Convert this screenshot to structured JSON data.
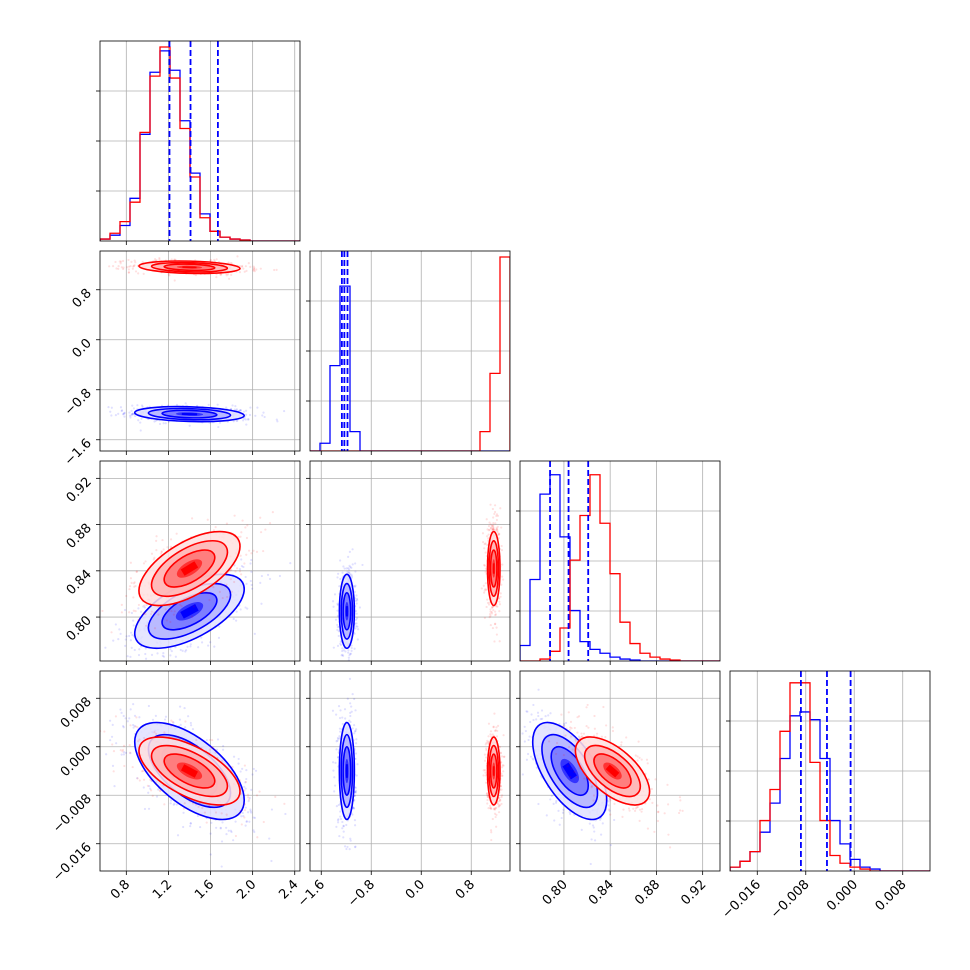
{
  "chart_data": {
    "type": "corner",
    "title": "",
    "parameters": [
      {
        "label": "",
        "range": [
          0.55,
          2.45
        ],
        "ticks": [
          "0.8",
          "1.2",
          "1.6",
          "2.0",
          "2.4"
        ],
        "tick_values": [
          0.8,
          1.2,
          1.6,
          2.0,
          2.4
        ]
      },
      {
        "label": "",
        "range": [
          -1.78,
          1.42
        ],
        "ticks": [
          "-1.6",
          "-0.8",
          "0.0",
          "0.8"
        ],
        "tick_values": [
          -1.6,
          -0.8,
          0.0,
          0.8
        ]
      },
      {
        "label": "",
        "range": [
          0.762,
          0.935
        ],
        "ticks": [
          "0.80",
          "0.84",
          "0.88",
          "0.92"
        ],
        "tick_values": [
          0.8,
          0.84,
          0.88,
          0.92
        ]
      },
      {
        "label": "",
        "range": [
          -0.0205,
          0.0125
        ],
        "ticks": [
          "-0.016",
          "-0.008",
          "0.000",
          "0.008"
        ],
        "tick_values": [
          -0.016,
          -0.008,
          0.0,
          0.008
        ]
      }
    ],
    "series": [
      {
        "name": "",
        "color": "#0000ff",
        "means": [
          1.4,
          -1.19,
          0.805,
          -0.004
        ],
        "sds": [
          0.26,
          0.06,
          0.016,
          0.004
        ],
        "correlations": {
          "0-1": -0.2,
          "0-2": 0.6,
          "0-3": -0.6,
          "1-2": 0.0,
          "1-3": 0.0,
          "2-3": -0.6
        }
      },
      {
        "name": "",
        "color": "#ff0000",
        "means": [
          1.4,
          1.16,
          0.842,
          -0.004
        ],
        "sds": [
          0.24,
          0.05,
          0.016,
          0.0028
        ],
        "correlations": {
          "0-1": -0.2,
          "0-2": 0.6,
          "0-3": -0.6,
          "1-2": 0.0,
          "1-3": 0.0,
          "2-3": -0.6
        }
      }
    ],
    "histograms": [
      {
        "param": 0,
        "bins": [
          0.55,
          2.45
        ],
        "nbins": 20,
        "series": [
          [
            0.01,
            0.03,
            0.08,
            0.22,
            0.55,
            0.87,
            0.98,
            0.88,
            0.62,
            0.35,
            0.14,
            0.05,
            0.02,
            0.01,
            0.005,
            0.0,
            0.0,
            0.0,
            0.0,
            0.0
          ],
          [
            0.01,
            0.04,
            0.1,
            0.2,
            0.56,
            0.85,
            1.0,
            0.84,
            0.58,
            0.33,
            0.12,
            0.05,
            0.02,
            0.01,
            0.005,
            0.0,
            0.0,
            0.0,
            0.0,
            0.0
          ]
        ]
      },
      {
        "param": 1,
        "bins": [
          -1.78,
          1.42
        ],
        "nbins": 20,
        "series": [
          [
            0.0,
            0.04,
            0.44,
            0.85,
            0.1,
            0.0,
            0.0,
            0.0,
            0.0,
            0.0,
            0.0,
            0.0,
            0.0,
            0.0,
            0.0,
            0.0,
            0.0,
            0.0,
            0.0,
            0.0
          ],
          [
            0.0,
            0.0,
            0.0,
            0.0,
            0.0,
            0.0,
            0.0,
            0.0,
            0.0,
            0.0,
            0.0,
            0.0,
            0.0,
            0.0,
            0.0,
            0.0,
            0.0,
            0.1,
            0.4,
            1.0
          ]
        ]
      },
      {
        "param": 2,
        "bins": [
          0.762,
          0.935
        ],
        "nbins": 20,
        "series": [
          [
            0.08,
            0.42,
            0.86,
            0.96,
            0.64,
            0.26,
            0.1,
            0.06,
            0.04,
            0.02,
            0.01,
            0.005,
            0.0,
            0.0,
            0.0,
            0.0,
            0.0,
            0.0,
            0.0,
            0.0
          ],
          [
            0.0,
            0.0,
            0.01,
            0.05,
            0.17,
            0.52,
            0.75,
            0.96,
            0.71,
            0.45,
            0.2,
            0.09,
            0.04,
            0.02,
            0.01,
            0.005,
            0.0,
            0.0,
            0.0,
            0.0
          ]
        ]
      },
      {
        "param": 3,
        "bins": [
          -0.0205,
          0.0125
        ],
        "nbins": 20,
        "series": [
          [
            0.02,
            0.05,
            0.1,
            0.2,
            0.35,
            0.58,
            0.8,
            0.82,
            0.78,
            0.58,
            0.26,
            0.14,
            0.06,
            0.02,
            0.01,
            0.0,
            0.0,
            0.0,
            0.0,
            0.0
          ],
          [
            0.02,
            0.05,
            0.1,
            0.26,
            0.42,
            0.72,
            0.97,
            0.97,
            0.56,
            0.26,
            0.08,
            0.04,
            0.02,
            0.01,
            0.0,
            0.0,
            0.0,
            0.0,
            0.0,
            0.0
          ]
        ]
      }
    ],
    "quantile_lines": [
      [
        1.21,
        1.41,
        1.67
      ],
      [
        -1.27,
        -1.23,
        -1.18
      ],
      [
        0.788,
        0.804,
        0.821
      ],
      [
        -0.0088,
        -0.0045,
        -0.0006
      ]
    ],
    "grid": true,
    "legend": "none"
  }
}
